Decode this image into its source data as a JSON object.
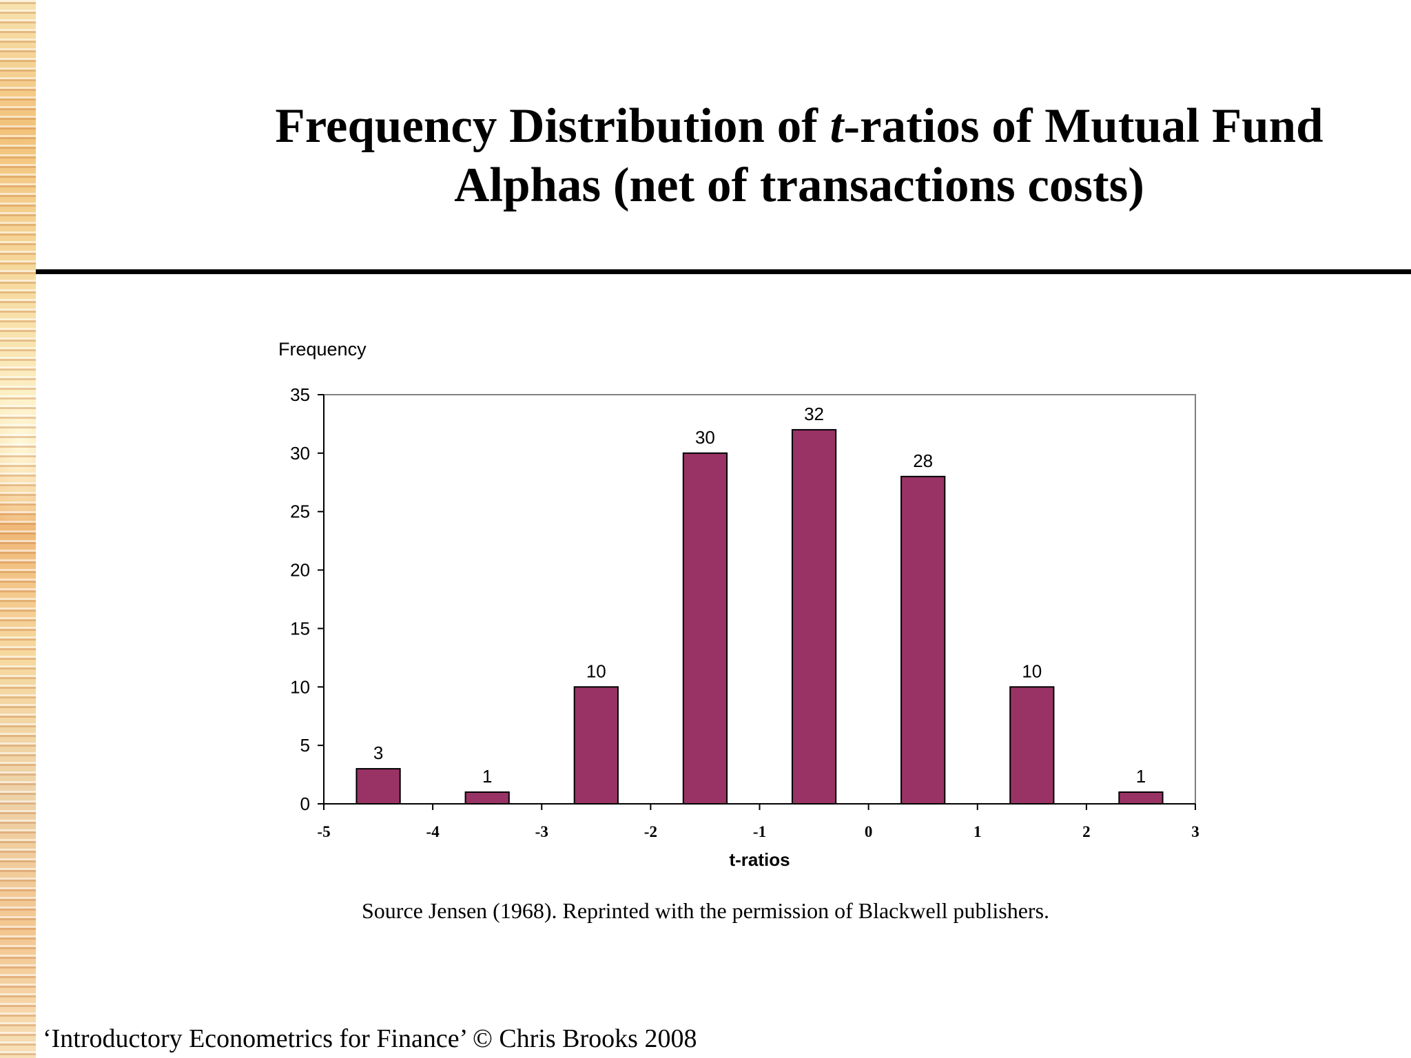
{
  "slide": {
    "title_line1_prefix": "Frequency Distribution of ",
    "title_line1_italic": "t",
    "title_line1_suffix": "-ratios of Mutual Fund",
    "title_line2": "Alphas (net of transactions costs)",
    "caption": "Source Jensen (1968). Reprinted with the permission of Blackwell publishers.",
    "footer": "‘Introductory Econometrics for Finance’ © Chris Brooks 2008"
  },
  "colors": {
    "bar": "#993366",
    "axis": "#808080"
  },
  "chart_data": {
    "type": "bar",
    "title": "",
    "xlabel": "t-ratios",
    "ylabel": "Frequency",
    "ylim": [
      0,
      35
    ],
    "yticks": [
      "0",
      "5",
      "10",
      "15",
      "20",
      "25",
      "30",
      "35"
    ],
    "xlim": [
      -5,
      3
    ],
    "xticks": [
      "-5",
      "-4",
      "-3",
      "-2",
      "-1",
      "0",
      "1",
      "2",
      "3"
    ],
    "bar_width": 0.4,
    "bars": [
      {
        "x_center": -4.5,
        "value": 3
      },
      {
        "x_center": -3.5,
        "value": 1
      },
      {
        "x_center": -2.5,
        "value": 10
      },
      {
        "x_center": -1.5,
        "value": 30
      },
      {
        "x_center": -0.5,
        "value": 32
      },
      {
        "x_center": 0.5,
        "value": 28
      },
      {
        "x_center": 1.5,
        "value": 10
      },
      {
        "x_center": 2.5,
        "value": 1
      }
    ],
    "data_labels": true,
    "grid": false,
    "legend": false
  }
}
